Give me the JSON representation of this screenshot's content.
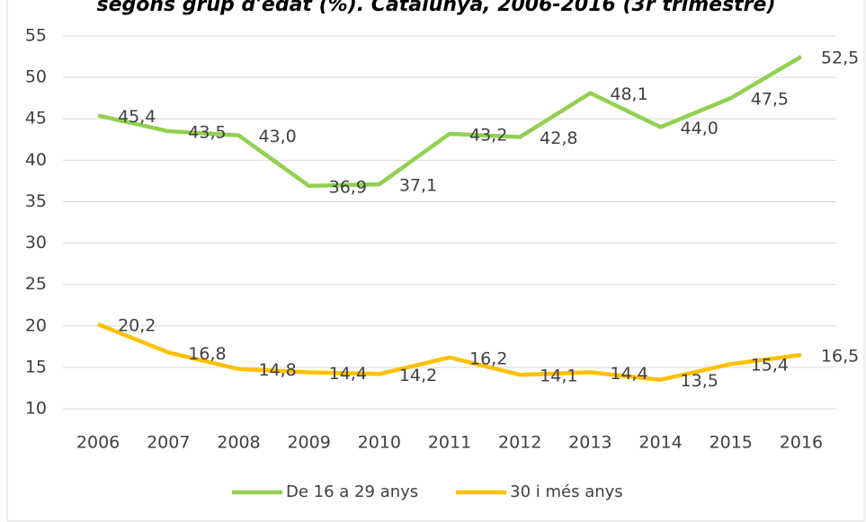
{
  "chart_data": {
    "type": "line",
    "title": "segons grup d'edat (%). Catalunya, 2006-2016 (3r trimestre)",
    "categories": [
      "2006",
      "2007",
      "2008",
      "2009",
      "2010",
      "2011",
      "2012",
      "2013",
      "2014",
      "2015",
      "2016"
    ],
    "series": [
      {
        "name": "De 16 a 29 anys",
        "color": "#92d050",
        "values": [
          45.4,
          43.5,
          43.0,
          36.9,
          37.1,
          43.2,
          42.8,
          48.1,
          44.0,
          47.5,
          52.5
        ],
        "value_labels": [
          "45,4",
          "43,5",
          "43,0",
          "36,9",
          "37,1",
          "43,2",
          "42,8",
          "48,1",
          "44,0",
          "47,5",
          "52,5"
        ]
      },
      {
        "name": "30 i més anys",
        "color": "#ffc000",
        "values": [
          20.2,
          16.8,
          14.8,
          14.4,
          14.2,
          16.2,
          14.1,
          14.4,
          13.5,
          15.4,
          16.5
        ],
        "value_labels": [
          "20,2",
          "16,8",
          "14,8",
          "14,4",
          "14,2",
          "16,2",
          "14,1",
          "14,4",
          "13,5",
          "15,4",
          "16,5"
        ]
      }
    ],
    "ylim": [
      10,
      55
    ],
    "yticks": [
      10,
      15,
      20,
      25,
      30,
      35,
      40,
      45,
      50,
      55
    ],
    "grid": true,
    "legend": "bottom"
  }
}
